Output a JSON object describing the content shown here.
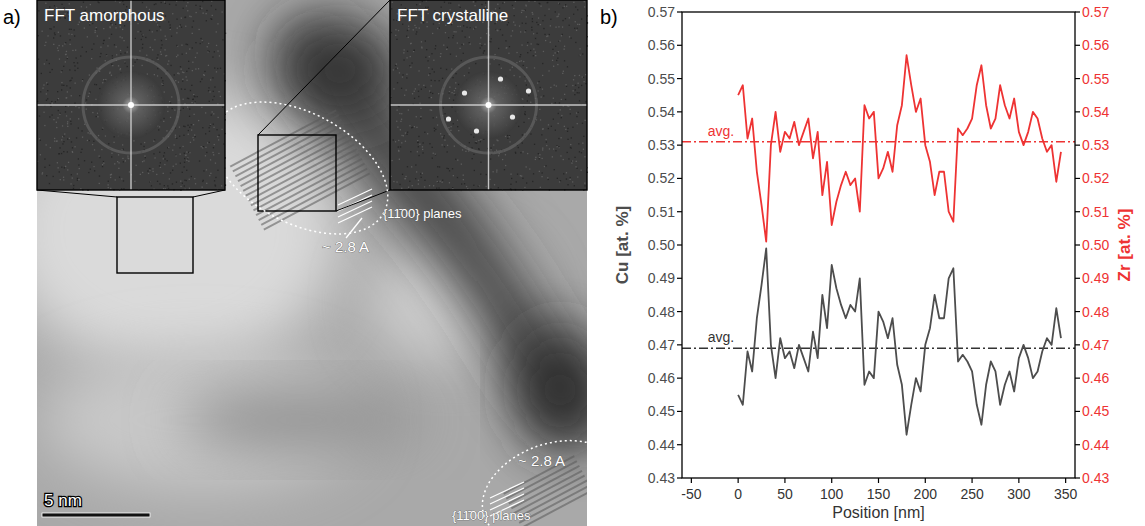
{
  "figure_a": {
    "label": "a)",
    "insets": [
      {
        "title": "FFT amorphous"
      },
      {
        "title": "FFT crystalline"
      }
    ],
    "annotations": [
      {
        "planes": "{11̄00} planes",
        "spacing": "~ 2.8 A"
      },
      {
        "planes": "{11̄00} planes",
        "spacing": "~ 2.8 A"
      }
    ],
    "scale_bar": "5 nm"
  },
  "chart_data": {
    "type": "line",
    "panel_label": "b)",
    "x_label": "Position [nm]",
    "y_label": "Cu [at. %]",
    "y2_label": "Zr [at. %]",
    "x": [
      0,
      5,
      10,
      15,
      20,
      25,
      30,
      35,
      40,
      45,
      50,
      55,
      60,
      65,
      70,
      75,
      80,
      85,
      90,
      95,
      100,
      105,
      110,
      115,
      120,
      125,
      130,
      135,
      140,
      145,
      150,
      155,
      160,
      165,
      170,
      175,
      180,
      185,
      190,
      195,
      200,
      205,
      210,
      215,
      220,
      225,
      230,
      235,
      240,
      245,
      250,
      255,
      260,
      265,
      270,
      275,
      280,
      285,
      290,
      295,
      300,
      305,
      310,
      315,
      320,
      325,
      330,
      335,
      340,
      345
    ],
    "series": [
      {
        "color": "#4d4d4d",
        "values": [
          0.455,
          0.452,
          0.468,
          0.462,
          0.478,
          0.488,
          0.499,
          0.47,
          0.46,
          0.472,
          0.466,
          0.468,
          0.463,
          0.47,
          0.466,
          0.462,
          0.474,
          0.466,
          0.485,
          0.475,
          0.494,
          0.487,
          0.482,
          0.478,
          0.482,
          0.48,
          0.49,
          0.458,
          0.462,
          0.46,
          0.48,
          0.477,
          0.472,
          0.478,
          0.464,
          0.458,
          0.443,
          0.452,
          0.46,
          0.456,
          0.47,
          0.475,
          0.485,
          0.478,
          0.478,
          0.49,
          0.493,
          0.465,
          0.467,
          0.465,
          0.462,
          0.452,
          0.446,
          0.458,
          0.465,
          0.462,
          0.452,
          0.458,
          0.462,
          0.456,
          0.466,
          0.47,
          0.466,
          0.46,
          0.462,
          0.468,
          0.472,
          0.47,
          0.481,
          0.472
        ]
      },
      {
        "color": "#ee3333",
        "axis": "y2",
        "values": [
          0.545,
          0.548,
          0.532,
          0.538,
          0.522,
          0.512,
          0.501,
          0.53,
          0.54,
          0.528,
          0.534,
          0.532,
          0.537,
          0.53,
          0.534,
          0.538,
          0.526,
          0.534,
          0.515,
          0.525,
          0.506,
          0.513,
          0.518,
          0.522,
          0.518,
          0.52,
          0.51,
          0.542,
          0.538,
          0.54,
          0.52,
          0.523,
          0.528,
          0.522,
          0.536,
          0.542,
          0.557,
          0.548,
          0.54,
          0.544,
          0.53,
          0.525,
          0.515,
          0.522,
          0.522,
          0.51,
          0.507,
          0.535,
          0.533,
          0.535,
          0.538,
          0.548,
          0.554,
          0.542,
          0.535,
          0.538,
          0.548,
          0.542,
          0.538,
          0.544,
          0.534,
          0.53,
          0.534,
          0.54,
          0.538,
          0.532,
          0.528,
          0.53,
          0.519,
          0.528
        ]
      }
    ],
    "reference_lines": [
      {
        "value": 0.531,
        "label": "avg.",
        "color": "#ee3333",
        "axis": "y2",
        "line_style": "dashdot"
      },
      {
        "value": 0.469,
        "label": "avg.",
        "color": "#333333",
        "line_style": "dashdot"
      }
    ],
    "xlim": [
      -60,
      360
    ],
    "xticks": [
      -50,
      0,
      50,
      100,
      150,
      200,
      250,
      300,
      350
    ],
    "ylim": [
      0.43,
      0.57
    ],
    "yticks": [
      0.43,
      0.44,
      0.45,
      0.46,
      0.47,
      0.48,
      0.49,
      0.5,
      0.51,
      0.52,
      0.53,
      0.54,
      0.55,
      0.56,
      0.57
    ],
    "y2lim": [
      0.43,
      0.57
    ],
    "y2ticks": [
      0.43,
      0.44,
      0.45,
      0.46,
      0.47,
      0.48,
      0.49,
      0.5,
      0.51,
      0.52,
      0.53,
      0.54,
      0.55,
      0.56,
      0.57
    ],
    "grid": false
  }
}
